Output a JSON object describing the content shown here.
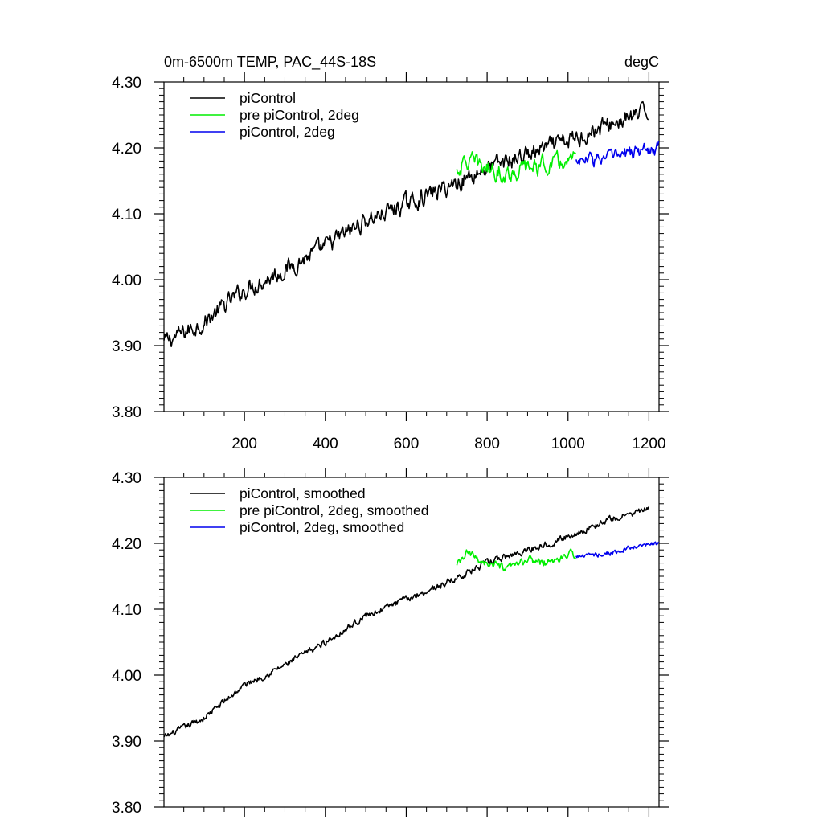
{
  "title_left": "0m-6500m TEMP, PAC_44S-18S",
  "title_right": "degC",
  "chart_data": [
    {
      "type": "line",
      "panel": "top",
      "xlim": [
        1,
        1225
      ],
      "ylim": [
        3.8,
        4.3
      ],
      "x_ticks": [
        200,
        400,
        600,
        800,
        1000,
        1200
      ],
      "x_tick_labels": [
        "200",
        "400",
        "600",
        "800",
        "1000",
        "1200"
      ],
      "y_ticks": [
        3.8,
        3.9,
        4.0,
        4.1,
        4.2,
        4.3
      ],
      "y_tick_labels": [
        "3.80",
        "3.90",
        "4.00",
        "4.10",
        "4.20",
        "4.30"
      ],
      "legend_position": "top-left",
      "series": [
        {
          "name": "piControl",
          "color": "#000000",
          "x_range": [
            1,
            1200
          ],
          "anchors": [
            [
              1,
              3.905
            ],
            [
              100,
              3.935
            ],
            [
              200,
              3.985
            ],
            [
              300,
              4.015
            ],
            [
              400,
              4.05
            ],
            [
              500,
              4.09
            ],
            [
              600,
              4.115
            ],
            [
              700,
              4.14
            ],
            [
              800,
              4.17
            ],
            [
              900,
              4.19
            ],
            [
              1000,
              4.21
            ],
            [
              1100,
              4.235
            ],
            [
              1200,
              4.255
            ]
          ],
          "noise": 0.011
        },
        {
          "name": "pre piControl, 2deg",
          "color": "#00ee00",
          "x_range": [
            725,
            1020
          ],
          "anchors": [
            [
              725,
              4.165
            ],
            [
              750,
              4.18
            ],
            [
              800,
              4.17
            ],
            [
              850,
              4.16
            ],
            [
              900,
              4.17
            ],
            [
              950,
              4.175
            ],
            [
              1020,
              4.18
            ]
          ],
          "noise": 0.011
        },
        {
          "name": "piControl, 2deg",
          "color": "#0000ee",
          "x_range": [
            1020,
            1225
          ],
          "anchors": [
            [
              1020,
              4.18
            ],
            [
              1100,
              4.185
            ],
            [
              1200,
              4.198
            ],
            [
              1225,
              4.2
            ]
          ],
          "noise": 0.009
        }
      ]
    },
    {
      "type": "line",
      "panel": "bottom",
      "xlim": [
        1,
        1225
      ],
      "ylim": [
        3.8,
        4.3
      ],
      "x_ticks": [
        200,
        400,
        600,
        800,
        1000,
        1200
      ],
      "y_ticks": [
        3.8,
        3.9,
        4.0,
        4.1,
        4.2,
        4.3
      ],
      "y_tick_labels": [
        "3.80",
        "3.90",
        "4.00",
        "4.10",
        "4.20",
        "4.30"
      ],
      "legend_position": "top-left",
      "series": [
        {
          "name": "piControl, smoothed",
          "color": "#000000",
          "x_range": [
            1,
            1200
          ],
          "anchors": [
            [
              1,
              3.905
            ],
            [
              100,
              3.935
            ],
            [
              200,
              3.985
            ],
            [
              300,
              4.015
            ],
            [
              400,
              4.05
            ],
            [
              500,
              4.09
            ],
            [
              600,
              4.115
            ],
            [
              700,
              4.14
            ],
            [
              800,
              4.17
            ],
            [
              900,
              4.19
            ],
            [
              1000,
              4.21
            ],
            [
              1100,
              4.235
            ],
            [
              1200,
              4.252
            ]
          ],
          "noise": 0.004
        },
        {
          "name": "pre piControl, 2deg, smoothed",
          "color": "#00ee00",
          "x_range": [
            725,
            1020
          ],
          "anchors": [
            [
              725,
              4.165
            ],
            [
              750,
              4.185
            ],
            [
              800,
              4.17
            ],
            [
              850,
              4.16
            ],
            [
              900,
              4.175
            ],
            [
              950,
              4.17
            ],
            [
              1020,
              4.185
            ]
          ],
          "noise": 0.005
        },
        {
          "name": "piControl, 2deg, smoothed",
          "color": "#0000ee",
          "x_range": [
            1020,
            1225
          ],
          "anchors": [
            [
              1020,
              4.18
            ],
            [
              1100,
              4.185
            ],
            [
              1200,
              4.198
            ],
            [
              1225,
              4.2
            ]
          ],
          "noise": 0.003
        }
      ]
    }
  ]
}
